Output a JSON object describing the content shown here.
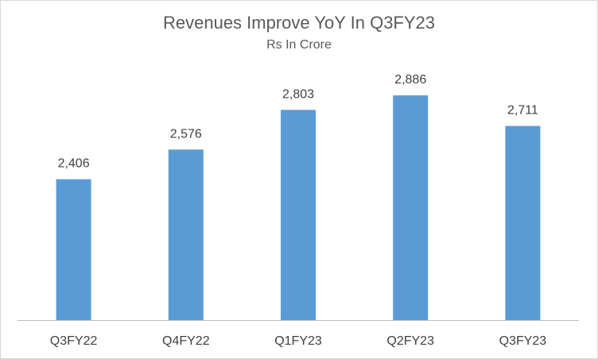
{
  "chart_data": {
    "type": "bar",
    "title": "Revenues Improve YoY In Q3FY23",
    "subtitle": "Rs In Crore",
    "xlabel": "",
    "ylabel": "",
    "categories": [
      "Q3FY22",
      "Q4FY22",
      "Q1FY23",
      "Q2FY23",
      "Q3FY23"
    ],
    "values": [
      2406,
      2576,
      2803,
      2886,
      2711
    ],
    "data_labels": [
      "2,406",
      "2,576",
      "2,803",
      "2,886",
      "2,711"
    ],
    "ylim": [
      1600,
      3000
    ],
    "grid": false,
    "legend": "none",
    "bar_color": "#5b9bd5"
  }
}
